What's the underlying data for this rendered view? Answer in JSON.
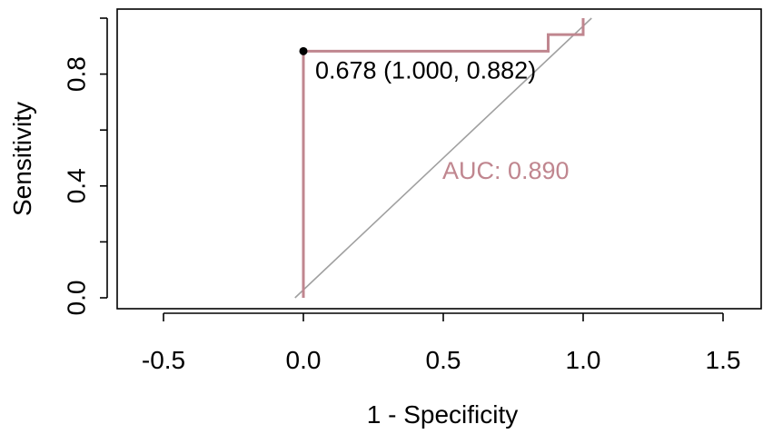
{
  "chart_data": {
    "type": "line",
    "xlabel": "1 - Specificity",
    "ylabel": "Sensitivity",
    "xlim": [
      -0.65,
      1.65
    ],
    "ylim": [
      0,
      1
    ],
    "x_ticks": [
      "-0.5",
      "0.0",
      "0.5",
      "1.0",
      "1.5"
    ],
    "x_tick_values": [
      -0.5,
      0.0,
      0.5,
      1.0,
      1.5
    ],
    "y_ticks": [
      "0.0",
      "0.4",
      "0.8"
    ],
    "y_tick_values": [
      0.0,
      0.2,
      0.4,
      0.6,
      0.8,
      1.0
    ],
    "y_labeled_values": [
      0.0,
      0.4,
      0.8
    ],
    "series": [
      {
        "color": "#c0868f",
        "x": [
          0.0,
          0.0,
          0.875,
          0.875,
          0.9375,
          1.0,
          1.0
        ],
        "y": [
          0.0,
          0.882,
          0.882,
          0.941,
          0.941,
          0.941,
          1.0
        ]
      }
    ],
    "diagonal": {
      "x": [
        -0.03,
        1.03
      ],
      "y": [
        0.0,
        1.0
      ],
      "color": "#a0a0a0"
    },
    "best_point": {
      "x": 0.0,
      "y": 0.882,
      "label": "0.678 (1.000, 0.882)"
    },
    "auc_label": "AUC: 0.890",
    "auc_color": "#c0868f",
    "grid": false,
    "legend": "none"
  }
}
